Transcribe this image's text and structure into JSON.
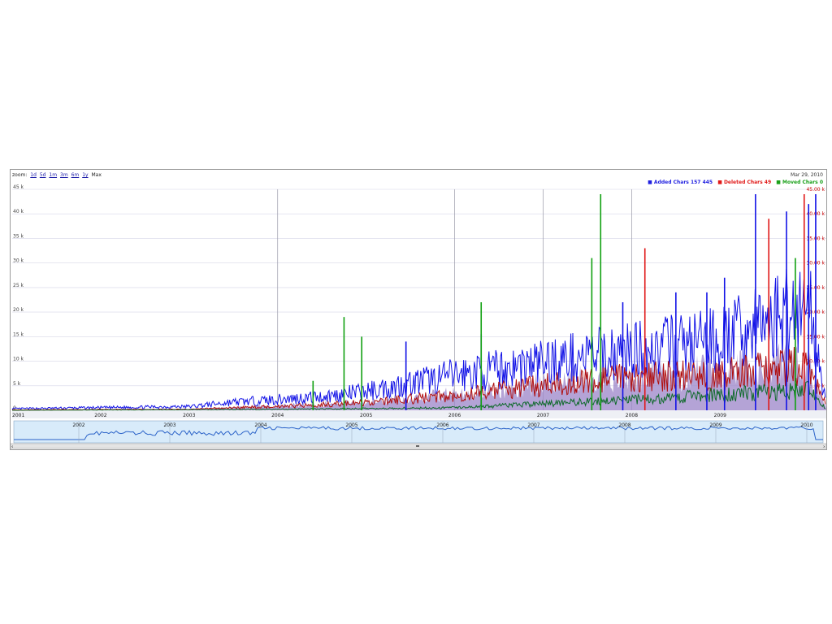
{
  "toolbar": {
    "zoom_label": "zoom:",
    "options": [
      "1d",
      "5d",
      "1m",
      "3m",
      "6m",
      "1y"
    ],
    "max_label": "Max"
  },
  "range_label": "Mar 29, 2010",
  "legend": [
    {
      "label": "Added Chars 157 445",
      "color": "#1f1fe0"
    },
    {
      "label": "Deleted Chars 49",
      "color": "#e01818"
    },
    {
      "label": "Moved Chars 0",
      "color": "#1aa01a"
    }
  ],
  "colors": {
    "added": "#1212e6",
    "deleted": "#b01010",
    "moved": "#10a010",
    "fill": "#9b84c8",
    "nav_line": "#2a62c8",
    "nav_fill": "#d8ebfa"
  },
  "chart_data": {
    "type": "line",
    "x_range": [
      "2001",
      "2010"
    ],
    "x_ticks": [
      "2001",
      "2002",
      "2003",
      "2004",
      "2005",
      "2006",
      "2007",
      "2008",
      "2009"
    ],
    "y_ticks_left": [
      "0",
      "5 k",
      "10 k",
      "15 k",
      "20 k",
      "25 k",
      "30 k",
      "35 k",
      "40 k",
      "45 k"
    ],
    "y_ticks_right": [
      "45.00 k",
      "40.00 k",
      "35.00 k",
      "30.00 k",
      "25.00 k",
      "20.00 k",
      "15.00 k",
      "10.00 k",
      "5.00 k"
    ],
    "ylim": [
      0,
      45000
    ],
    "grid": true,
    "legend_position": "top-right",
    "series": [
      {
        "name": "Added Chars",
        "x": [
          2001.0,
          2002.0,
          2003.0,
          2003.5,
          2004.0,
          2004.5,
          2005.0,
          2005.5,
          2006.0,
          2006.5,
          2007.0,
          2007.5,
          2008.0,
          2008.5,
          2009.0,
          2009.5,
          2010.0,
          2010.2
        ],
        "y": [
          300,
          500,
          700,
          1500,
          2000,
          2500,
          3500,
          5000,
          6500,
          7500,
          9000,
          10000,
          11000,
          12000,
          13000,
          16000,
          20000,
          1500
        ],
        "spikes": [
          {
            "x": 2005.45,
            "y": 14000
          },
          {
            "x": 2006.3,
            "y": 15500
          },
          {
            "x": 2007.9,
            "y": 22000
          },
          {
            "x": 2008.5,
            "y": 24000
          },
          {
            "x": 2008.85,
            "y": 24000
          },
          {
            "x": 2009.05,
            "y": 27000
          },
          {
            "x": 2009.4,
            "y": 44000
          },
          {
            "x": 2009.75,
            "y": 40500
          },
          {
            "x": 2010.0,
            "y": 42000
          },
          {
            "x": 2010.08,
            "y": 44000
          }
        ]
      },
      {
        "name": "Deleted Chars",
        "x": [
          2001.0,
          2003.0,
          2004.0,
          2005.0,
          2006.0,
          2007.0,
          2008.0,
          2009.0,
          2010.0,
          2010.2
        ],
        "y": [
          100,
          200,
          800,
          1500,
          3000,
          5000,
          6500,
          7000,
          9000,
          800
        ],
        "spikes": [
          {
            "x": 2008.15,
            "y": 33000
          },
          {
            "x": 2009.55,
            "y": 39000
          },
          {
            "x": 2009.95,
            "y": 44000
          }
        ]
      },
      {
        "name": "Moved Chars",
        "x": [
          2001.0,
          2004.0,
          2006.0,
          2008.0,
          2010.0,
          2010.2
        ],
        "y": [
          0,
          200,
          500,
          2000,
          4000,
          200
        ],
        "spikes": [
          {
            "x": 2004.4,
            "y": 6000
          },
          {
            "x": 2004.75,
            "y": 19000
          },
          {
            "x": 2004.95,
            "y": 15000
          },
          {
            "x": 2006.3,
            "y": 22000
          },
          {
            "x": 2007.55,
            "y": 31000
          },
          {
            "x": 2007.65,
            "y": 44000
          },
          {
            "x": 2009.85,
            "y": 31000
          }
        ]
      }
    ],
    "navigator": {
      "x_ticks": [
        "2002",
        "2003",
        "2004",
        "2005",
        "2006",
        "2007",
        "2008",
        "2009",
        "2010"
      ]
    }
  }
}
